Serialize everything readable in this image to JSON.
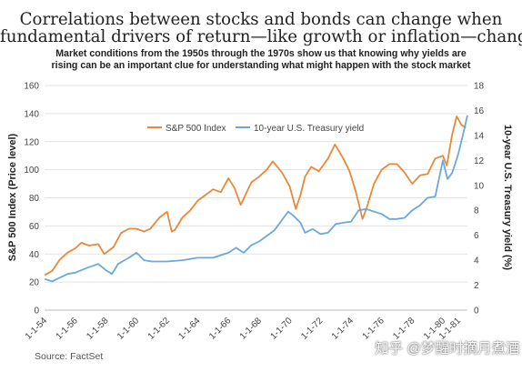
{
  "title_lines": [
    "Correlations between stocks and bonds can change when",
    "fundamental drivers of return—like growth or inflation—change"
  ],
  "subtitle_lines": [
    "Market conditions from the 1950s through the 1970s show us that knowing why yields are",
    "rising can be an important clue for understanding what might happen with the stock market"
  ],
  "source": "Source: FactSet",
  "watermark": "知乎 @梦醒时摘月煮酒",
  "chart_data": {
    "type": "line",
    "ylabel_left": "S&P 500 Index (Price level)",
    "ylabel_right": "10-year U.S. Treasury yield (%)",
    "ylim_left": [
      0,
      160
    ],
    "ylim_right": [
      0,
      18
    ],
    "yticks_left": [
      "0",
      "20",
      "40",
      "60",
      "80",
      "100",
      "120",
      "140",
      "160"
    ],
    "yticks_right": [
      "0",
      "2",
      "4",
      "6",
      "8",
      "10",
      "12",
      "14",
      "16",
      "18"
    ],
    "x_ticks": [
      "1-1-54",
      "1-1-56",
      "1-1-58",
      "1-1-60",
      "1-1-62",
      "1-1-64",
      "1-1-66",
      "1-1-68",
      "1-1-70",
      "1-1-72",
      "1-1-74",
      "1-1-76",
      "1-1-78",
      "1-1-80",
      "1-1-81"
    ],
    "x_range": [
      1954.0,
      1981.6
    ],
    "grid": "horizontal",
    "legend_position": "top-center",
    "series": [
      {
        "name": "S&P 500 Index",
        "axis": "left",
        "color": "#e8893a",
        "x": [
          1954.0,
          1954.5,
          1955.0,
          1955.5,
          1956.0,
          1956.4,
          1956.9,
          1957.5,
          1957.9,
          1958.5,
          1959.0,
          1959.5,
          1960.0,
          1960.5,
          1960.9,
          1961.5,
          1962.0,
          1962.3,
          1962.5,
          1963.0,
          1963.5,
          1964.0,
          1964.5,
          1965.0,
          1965.5,
          1966.0,
          1966.4,
          1966.8,
          1967.5,
          1968.0,
          1968.5,
          1968.9,
          1969.5,
          1970.0,
          1970.4,
          1970.7,
          1971.0,
          1971.4,
          1971.9,
          1972.5,
          1972.95,
          1973.5,
          1973.9,
          1974.3,
          1974.75,
          1975.0,
          1975.5,
          1976.0,
          1976.5,
          1977.0,
          1977.5,
          1978.0,
          1978.5,
          1979.0,
          1979.5,
          1980.0,
          1980.25,
          1980.6,
          1980.9,
          1981.2,
          1981.5
        ],
        "values": [
          25,
          28,
          36,
          41,
          44,
          48,
          46,
          47,
          40,
          45,
          55,
          58,
          58,
          56,
          58,
          66,
          70,
          56,
          57,
          66,
          71,
          78,
          82,
          86,
          84,
          94,
          87,
          75,
          91,
          95,
          100,
          106,
          98,
          88,
          72,
          82,
          95,
          102,
          99,
          108,
          118,
          108,
          99,
          85,
          65,
          72,
          90,
          100,
          104,
          104,
          98,
          90,
          96,
          97,
          108,
          110,
          103,
          125,
          138,
          132,
          130
        ]
      },
      {
        "name": "10-year U.S. Treasury yield",
        "axis": "right",
        "color": "#6aa9d8",
        "x": [
          1954.0,
          1954.5,
          1955.0,
          1955.5,
          1956.0,
          1956.8,
          1957.5,
          1958.0,
          1958.4,
          1958.8,
          1959.5,
          1960.0,
          1960.5,
          1961.0,
          1962.0,
          1963.0,
          1964.0,
          1965.0,
          1966.0,
          1966.5,
          1967.0,
          1967.5,
          1968.0,
          1969.0,
          1969.9,
          1970.3,
          1970.7,
          1971.0,
          1971.5,
          1972.0,
          1972.5,
          1973.0,
          1973.5,
          1974.0,
          1974.5,
          1975.0,
          1976.0,
          1976.5,
          1977.0,
          1977.5,
          1978.0,
          1978.5,
          1979.0,
          1979.5,
          1980.0,
          1980.3,
          1980.6,
          1981.0,
          1981.3,
          1981.6
        ],
        "values": [
          2.5,
          2.3,
          2.6,
          2.9,
          3.0,
          3.4,
          3.7,
          3.2,
          2.9,
          3.7,
          4.2,
          4.6,
          4.0,
          3.9,
          3.9,
          4.0,
          4.2,
          4.2,
          4.6,
          5.0,
          4.6,
          5.2,
          5.5,
          6.4,
          7.9,
          7.5,
          7.0,
          6.2,
          6.5,
          6.1,
          6.2,
          6.9,
          7.0,
          7.1,
          8.0,
          8.1,
          7.7,
          7.3,
          7.3,
          7.4,
          8.0,
          8.4,
          9.0,
          9.1,
          12.0,
          10.5,
          11.0,
          12.5,
          14.0,
          15.6
        ]
      }
    ]
  }
}
